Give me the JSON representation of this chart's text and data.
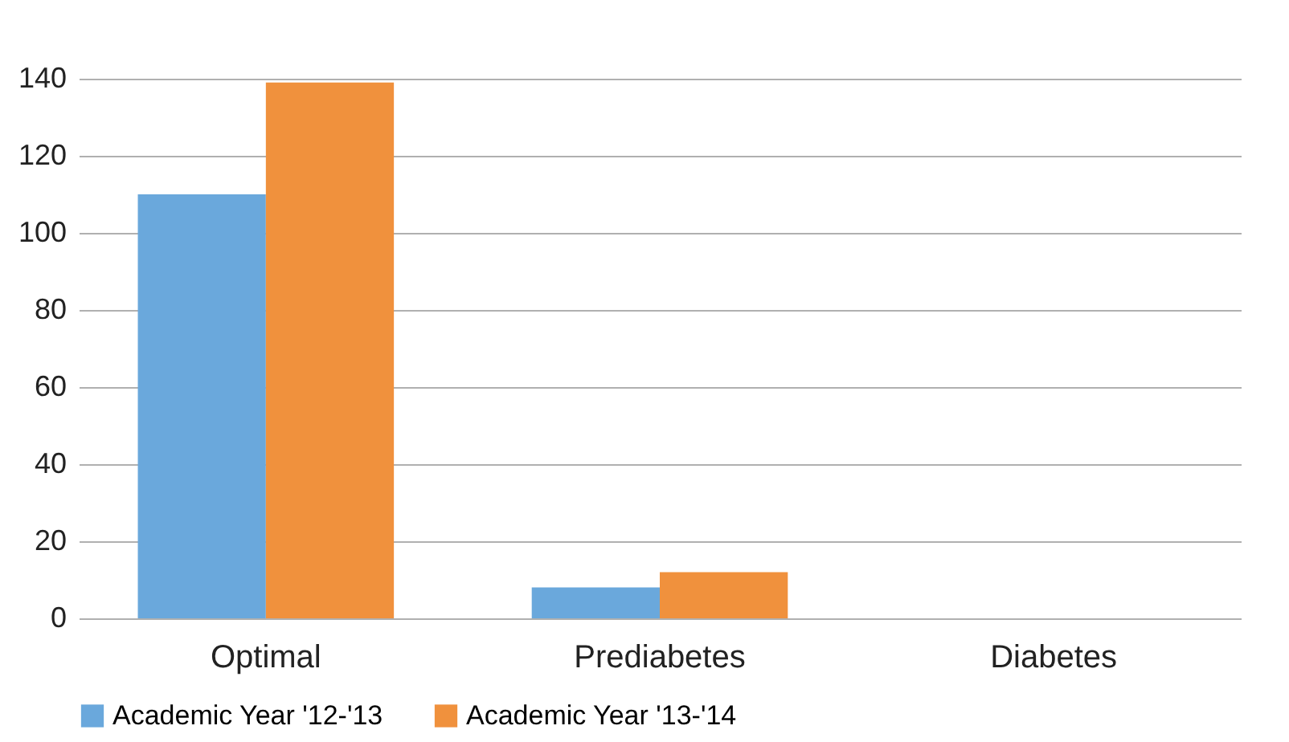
{
  "chart_data": {
    "type": "bar",
    "categories": [
      "Optimal",
      "Prediabetes",
      "Diabetes"
    ],
    "series": [
      {
        "name": "Academic Year '12-'13",
        "color": "#6aa8dc",
        "values": [
          110,
          8,
          0
        ]
      },
      {
        "name": "Academic Year '13-'14",
        "color": "#f0913d",
        "values": [
          139,
          12,
          0
        ]
      }
    ],
    "ylim": [
      0,
      140
    ],
    "yticks": [
      0,
      20,
      40,
      60,
      80,
      100,
      120,
      140
    ],
    "grid": "y",
    "legend": "bottom"
  }
}
